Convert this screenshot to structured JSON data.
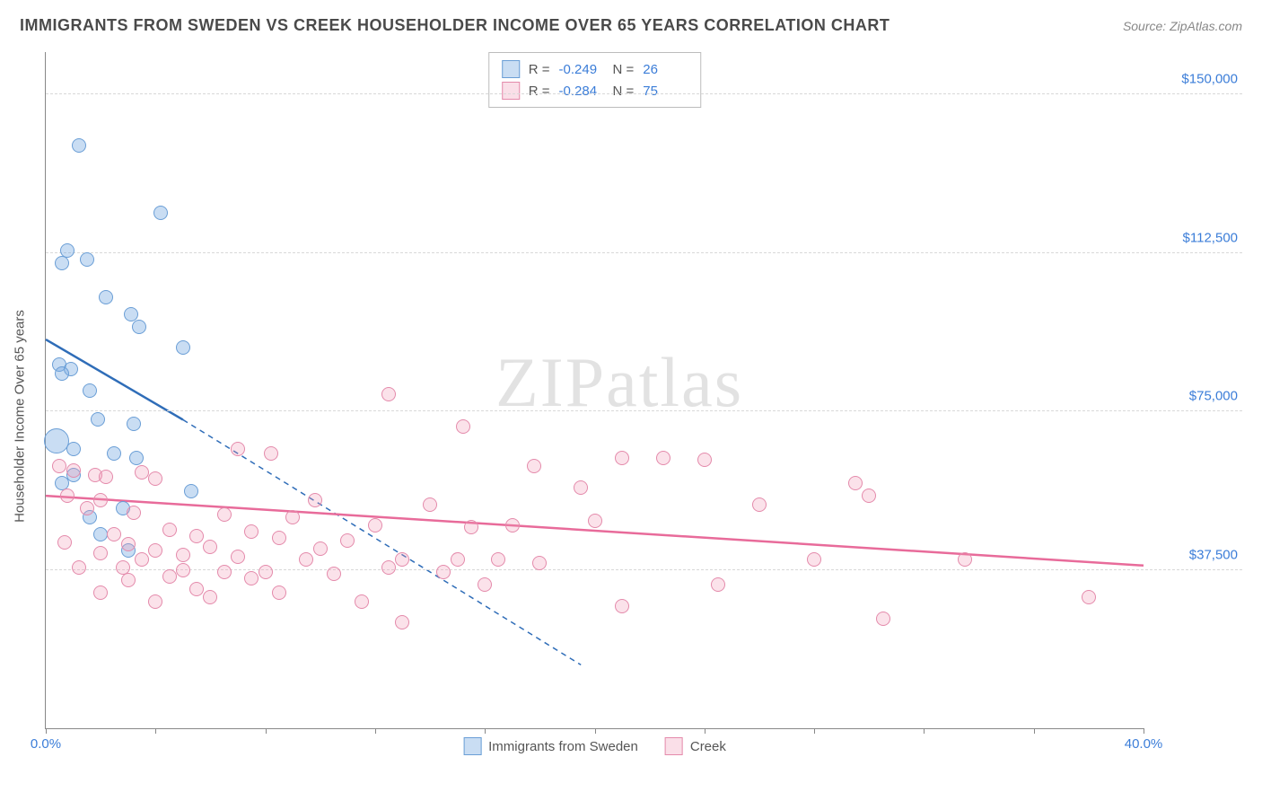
{
  "title": "IMMIGRANTS FROM SWEDEN VS CREEK HOUSEHOLDER INCOME OVER 65 YEARS CORRELATION CHART",
  "source": "Source: ZipAtlas.com",
  "watermark": {
    "bold": "ZIP",
    "thin": "atlas"
  },
  "chart": {
    "type": "scatter",
    "background_color": "#ffffff",
    "grid_color": "#d8d8d8",
    "axis_color": "#888888",
    "y_axis_label": "Householder Income Over 65 years",
    "y_axis_label_color": "#555555",
    "y_axis_label_fontsize": 15,
    "xlim": [
      0,
      40
    ],
    "ylim": [
      0,
      160000
    ],
    "x_ticks_pct": [
      0,
      4,
      8,
      12,
      16,
      20,
      24,
      28,
      32,
      36,
      40
    ],
    "x_tick_labels": [
      {
        "pct": 0,
        "label": "0.0%"
      },
      {
        "pct": 40,
        "label": "40.0%"
      }
    ],
    "y_gridlines": [
      37500,
      75000,
      112500,
      150000
    ],
    "y_tick_labels": [
      {
        "val": 37500,
        "label": "$37,500"
      },
      {
        "val": 75000,
        "label": "$75,000"
      },
      {
        "val": 112500,
        "label": "$112,500"
      },
      {
        "val": 150000,
        "label": "$150,000"
      }
    ],
    "tick_label_color": "#3b7dd8",
    "tick_label_fontsize": 15,
    "point_radius": 8,
    "large_point_radius": 14,
    "series": [
      {
        "name": "Immigrants from Sweden",
        "color_fill": "rgba(120,170,225,0.4)",
        "color_stroke": "#6a9ed6",
        "class": "blue",
        "R": "-0.249",
        "N": "26",
        "trend": {
          "solid": {
            "x1": 0,
            "y1": 92000,
            "x2": 5,
            "y2": 73000
          },
          "dashed": {
            "x1": 5,
            "y1": 73000,
            "x2": 19.5,
            "y2": 15000
          },
          "stroke": "#2f6db8",
          "width": 2.5,
          "dash": "6 5"
        },
        "points": [
          {
            "x": 1.2,
            "y": 138000
          },
          {
            "x": 4.2,
            "y": 122000
          },
          {
            "x": 0.8,
            "y": 113000
          },
          {
            "x": 1.5,
            "y": 111000
          },
          {
            "x": 0.6,
            "y": 110000
          },
          {
            "x": 2.2,
            "y": 102000
          },
          {
            "x": 3.1,
            "y": 98000
          },
          {
            "x": 3.4,
            "y": 95000
          },
          {
            "x": 5.0,
            "y": 90000
          },
          {
            "x": 0.5,
            "y": 86000
          },
          {
            "x": 0.9,
            "y": 85000
          },
          {
            "x": 0.6,
            "y": 84000
          },
          {
            "x": 1.6,
            "y": 80000
          },
          {
            "x": 1.9,
            "y": 73000
          },
          {
            "x": 3.2,
            "y": 72000
          },
          {
            "x": 0.4,
            "y": 68000,
            "r": 14
          },
          {
            "x": 1.0,
            "y": 66000
          },
          {
            "x": 2.5,
            "y": 65000
          },
          {
            "x": 3.3,
            "y": 64000
          },
          {
            "x": 1.0,
            "y": 60000
          },
          {
            "x": 0.6,
            "y": 58000
          },
          {
            "x": 5.3,
            "y": 56000
          },
          {
            "x": 2.8,
            "y": 52000
          },
          {
            "x": 1.6,
            "y": 50000
          },
          {
            "x": 3.0,
            "y": 42000
          },
          {
            "x": 2.0,
            "y": 46000
          }
        ]
      },
      {
        "name": "Creek",
        "color_fill": "rgba(240,150,180,0.28)",
        "color_stroke": "#e48aab",
        "class": "pink",
        "R": "-0.284",
        "N": "75",
        "trend": {
          "solid": {
            "x1": 0,
            "y1": 55000,
            "x2": 40,
            "y2": 38500
          },
          "stroke": "#e86b9a",
          "width": 2.5
        },
        "points": [
          {
            "x": 12.5,
            "y": 79000
          },
          {
            "x": 15.2,
            "y": 71500
          },
          {
            "x": 7.0,
            "y": 66000
          },
          {
            "x": 8.2,
            "y": 65000
          },
          {
            "x": 21.0,
            "y": 64000
          },
          {
            "x": 22.5,
            "y": 64000
          },
          {
            "x": 24.0,
            "y": 63500
          },
          {
            "x": 17.8,
            "y": 62000
          },
          {
            "x": 0.5,
            "y": 62000
          },
          {
            "x": 1.0,
            "y": 61000
          },
          {
            "x": 1.8,
            "y": 60000
          },
          {
            "x": 3.5,
            "y": 60500
          },
          {
            "x": 2.2,
            "y": 59500
          },
          {
            "x": 4.0,
            "y": 59000
          },
          {
            "x": 29.5,
            "y": 58000
          },
          {
            "x": 19.5,
            "y": 57000
          },
          {
            "x": 30.0,
            "y": 55000
          },
          {
            "x": 0.8,
            "y": 55000
          },
          {
            "x": 2.0,
            "y": 54000
          },
          {
            "x": 9.8,
            "y": 54000
          },
          {
            "x": 26.0,
            "y": 53000
          },
          {
            "x": 14.0,
            "y": 53000
          },
          {
            "x": 1.5,
            "y": 52000
          },
          {
            "x": 3.2,
            "y": 51000
          },
          {
            "x": 6.5,
            "y": 50500
          },
          {
            "x": 9.0,
            "y": 50000
          },
          {
            "x": 12.0,
            "y": 48000
          },
          {
            "x": 17.0,
            "y": 48000
          },
          {
            "x": 20.0,
            "y": 49000
          },
          {
            "x": 15.5,
            "y": 47500
          },
          {
            "x": 4.5,
            "y": 47000
          },
          {
            "x": 7.5,
            "y": 46500
          },
          {
            "x": 2.5,
            "y": 46000
          },
          {
            "x": 5.5,
            "y": 45500
          },
          {
            "x": 8.5,
            "y": 45000
          },
          {
            "x": 11.0,
            "y": 44500
          },
          {
            "x": 0.7,
            "y": 44000
          },
          {
            "x": 3.0,
            "y": 43500
          },
          {
            "x": 6.0,
            "y": 43000
          },
          {
            "x": 10.0,
            "y": 42500
          },
          {
            "x": 4.0,
            "y": 42000
          },
          {
            "x": 2.0,
            "y": 41500
          },
          {
            "x": 5.0,
            "y": 41000
          },
          {
            "x": 7.0,
            "y": 40500
          },
          {
            "x": 3.5,
            "y": 40000
          },
          {
            "x": 9.5,
            "y": 40000
          },
          {
            "x": 13.0,
            "y": 40000
          },
          {
            "x": 15.0,
            "y": 40000
          },
          {
            "x": 16.5,
            "y": 40000
          },
          {
            "x": 18.0,
            "y": 39000
          },
          {
            "x": 33.5,
            "y": 40000
          },
          {
            "x": 28.0,
            "y": 40000
          },
          {
            "x": 1.2,
            "y": 38000
          },
          {
            "x": 2.8,
            "y": 38000
          },
          {
            "x": 5.0,
            "y": 37500
          },
          {
            "x": 6.5,
            "y": 37000
          },
          {
            "x": 8.0,
            "y": 37000
          },
          {
            "x": 10.5,
            "y": 36500
          },
          {
            "x": 12.5,
            "y": 38000
          },
          {
            "x": 14.5,
            "y": 37000
          },
          {
            "x": 4.5,
            "y": 36000
          },
          {
            "x": 7.5,
            "y": 35500
          },
          {
            "x": 3.0,
            "y": 35000
          },
          {
            "x": 16.0,
            "y": 34000
          },
          {
            "x": 24.5,
            "y": 34000
          },
          {
            "x": 21.0,
            "y": 29000
          },
          {
            "x": 13.0,
            "y": 25000
          },
          {
            "x": 30.5,
            "y": 26000
          },
          {
            "x": 38.0,
            "y": 31000
          },
          {
            "x": 5.5,
            "y": 33000
          },
          {
            "x": 8.5,
            "y": 32000
          },
          {
            "x": 2.0,
            "y": 32000
          },
          {
            "x": 6.0,
            "y": 31000
          },
          {
            "x": 4.0,
            "y": 30000
          },
          {
            "x": 11.5,
            "y": 30000
          }
        ]
      }
    ],
    "legend_top": {
      "border_color": "#bcbcbc",
      "rows": [
        {
          "swatch": "blue",
          "R_label": "R =",
          "R_val": "-0.249",
          "N_label": "N =",
          "N_val": "26"
        },
        {
          "swatch": "pink",
          "R_label": "R =",
          "R_val": "-0.284",
          "N_label": "N =",
          "N_val": "75"
        }
      ]
    },
    "legend_bottom": [
      {
        "swatch": "blue",
        "label": "Immigrants from Sweden"
      },
      {
        "swatch": "pink",
        "label": "Creek"
      }
    ]
  }
}
